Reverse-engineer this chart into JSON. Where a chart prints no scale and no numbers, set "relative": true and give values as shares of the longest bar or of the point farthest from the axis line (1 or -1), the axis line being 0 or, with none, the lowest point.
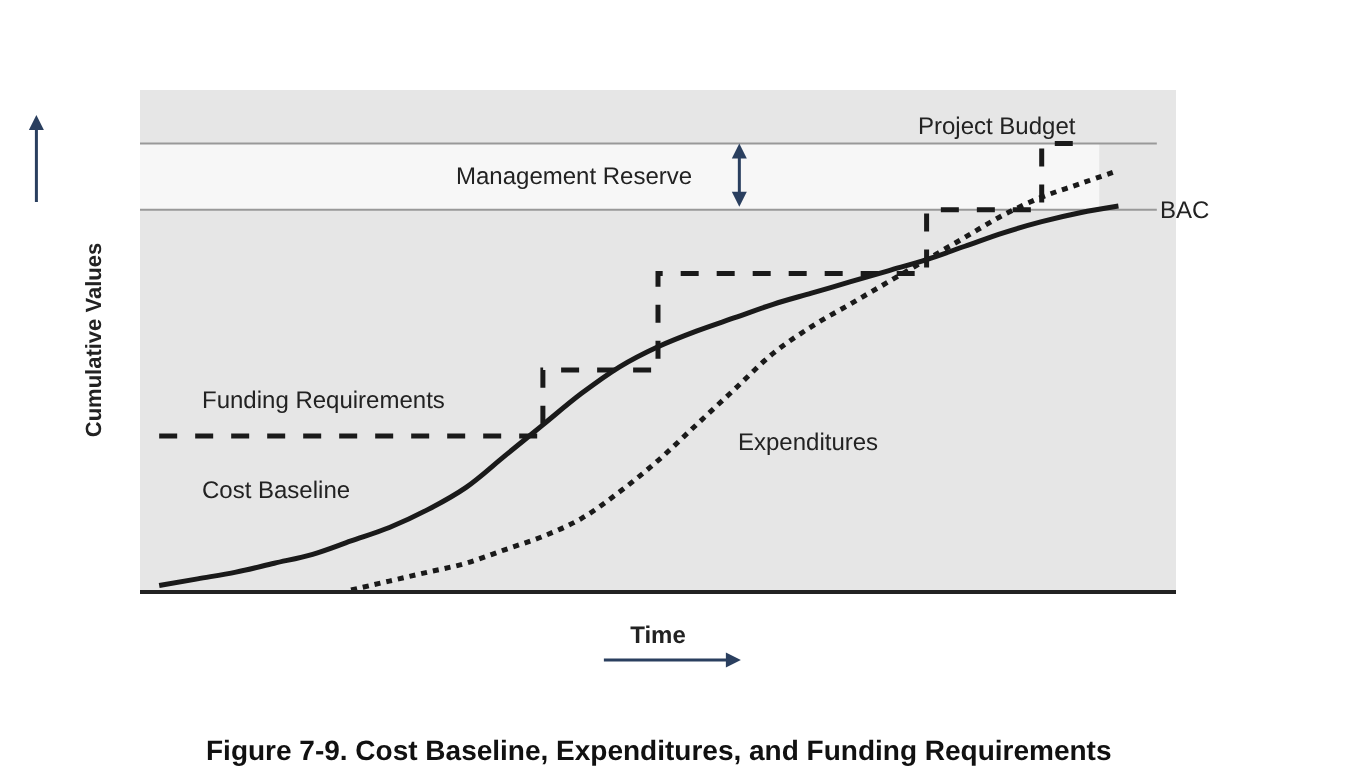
{
  "chart_data": {
    "type": "line",
    "relative": true,
    "title": "Figure 7-9. Cost Baseline, Expenditures, and Funding Requirements",
    "xlabel": "Time",
    "ylabel": "Cumulative Values",
    "legend": false,
    "grid": false,
    "categories": [
      null,
      null,
      null,
      null,
      null,
      null,
      null,
      null,
      null,
      null,
      null,
      null,
      null,
      null,
      null,
      null,
      null,
      null,
      null,
      null,
      null,
      null,
      null,
      null,
      null,
      null,
      null
    ],
    "series": [
      {
        "name": "Funding Requirements",
        "type": "step",
        "color": "#1a1a1a",
        "line_style": "dashed",
        "values": [
          0.345,
          0.345,
          0.345,
          0.345,
          0.345,
          0.345,
          0.345,
          0.345,
          0.345,
          0.345,
          0.493,
          0.493,
          0.493,
          0.709,
          0.709,
          0.709,
          0.709,
          0.709,
          0.709,
          0.709,
          0.852,
          0.852,
          0.852,
          1.0,
          1.0,
          null,
          null
        ]
      },
      {
        "name": "Cost Baseline",
        "color": "#1a1a1a",
        "line_style": "solid",
        "values": [
          0.01,
          0.025,
          0.04,
          0.06,
          0.08,
          0.11,
          0.14,
          0.18,
          0.23,
          0.3,
          0.37,
          0.44,
          0.5,
          0.545,
          0.58,
          0.61,
          0.64,
          0.665,
          0.69,
          0.715,
          0.74,
          0.77,
          0.8,
          0.825,
          0.845,
          0.86,
          null
        ]
      },
      {
        "name": "Expenditures",
        "color": "#1a1a1a",
        "line_style": "dotted",
        "values": [
          null,
          null,
          null,
          null,
          null,
          0,
          0.02,
          0.04,
          0.06,
          0.09,
          0.12,
          0.16,
          0.22,
          0.29,
          0.37,
          0.45,
          0.53,
          0.59,
          0.64,
          0.69,
          0.74,
          0.79,
          0.84,
          0.88,
          0.91,
          0.94,
          null
        ]
      }
    ],
    "ref_lines": [
      {
        "axis": "y",
        "value": 0.852,
        "label": "BAC",
        "color": "#999999"
      },
      {
        "axis": "y",
        "value": 1.0,
        "label": "Project Budget",
        "color": "#999999"
      }
    ],
    "bands": [
      {
        "axis": "y",
        "from": 0.852,
        "to": 1.0,
        "label": "Management Reserve",
        "color": "#f7f7f7"
      }
    ]
  }
}
